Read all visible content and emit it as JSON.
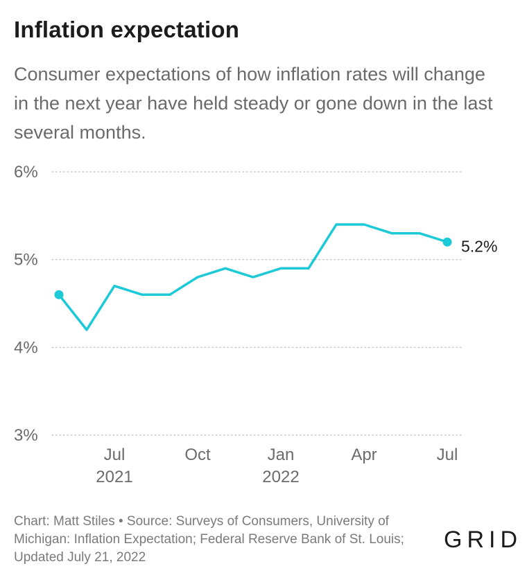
{
  "header": {
    "title": "Inflation expectation",
    "subtitle": "Consumer expectations of how inflation rates will change in the next year have held steady or gone down in the last several months."
  },
  "footer": {
    "credit": "Chart: Matt Stiles • Source: Surveys of Consumers, University of Michigan: Inflation Expectation; Federal Reserve Bank of St. Louis; Updated July 21, 2022",
    "logo": "GRID"
  },
  "colors": {
    "line": "#1cc9d6",
    "grid": "#c8c8c8",
    "tick": "#6b6b6b"
  },
  "chart_data": {
    "type": "line",
    "title": "Inflation expectation",
    "x": [
      "2021-05",
      "2021-06",
      "2021-07",
      "2021-08",
      "2021-09",
      "2021-10",
      "2021-11",
      "2021-12",
      "2022-01",
      "2022-02",
      "2022-03",
      "2022-04",
      "2022-05",
      "2022-06",
      "2022-07"
    ],
    "series": [
      {
        "values": [
          4.6,
          4.2,
          4.7,
          4.6,
          4.6,
          4.8,
          4.9,
          4.8,
          4.9,
          4.9,
          5.4,
          5.4,
          5.3,
          5.3,
          5.2
        ]
      }
    ],
    "ylim": [
      3,
      6
    ],
    "yticks": [
      {
        "value": 6,
        "label": "6%"
      },
      {
        "value": 5,
        "label": "5%"
      },
      {
        "value": 4,
        "label": "4%"
      },
      {
        "value": 3,
        "label": "3%"
      }
    ],
    "xticks": [
      {
        "x": "2021-07",
        "label": "Jul",
        "sublabel": "2021"
      },
      {
        "x": "2021-10",
        "label": "Oct",
        "sublabel": ""
      },
      {
        "x": "2022-01",
        "label": "Jan",
        "sublabel": "2022"
      },
      {
        "x": "2022-04",
        "label": "Apr",
        "sublabel": ""
      },
      {
        "x": "2022-07",
        "label": "Jul",
        "sublabel": ""
      }
    ],
    "end_label": "5.2%",
    "grid": true,
    "legend": "none"
  }
}
